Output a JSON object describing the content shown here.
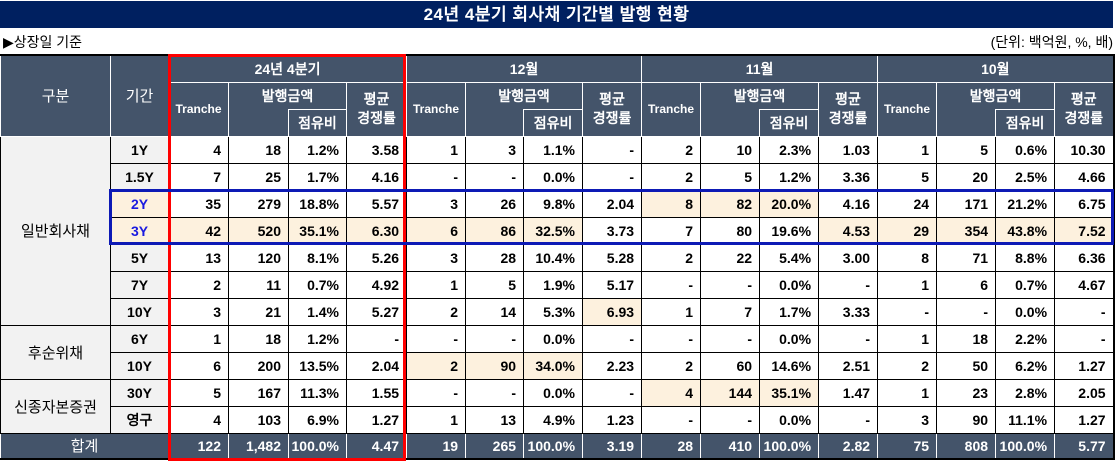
{
  "title": "24년 4분기 회사채 기간별 발행 현황",
  "subtitle_left": "▶상장일 기준",
  "unit_note": "(단위: 백억원, %, 배)",
  "colors": {
    "title_bg": "#002060",
    "header_bg": "#44546A",
    "label_bg": "#F2F2F2",
    "highlight_bg": "#FDF1DE",
    "red_box": "#FF0000",
    "blue_box": "#0D1AB5",
    "blue_text": "#1A1AE0"
  },
  "header": {
    "category": "구분",
    "period": "기간",
    "groups": [
      "24년 4분기",
      "12월",
      "11월",
      "10월"
    ],
    "tranche": "Tranche",
    "amount": "발행금액",
    "share": "점유비",
    "avg_line1": "평균",
    "avg_line2": "경쟁률"
  },
  "rows": [
    {
      "category": "일반회사채",
      "category_rowspan": 7,
      "period": "1Y",
      "groups": [
        [
          "4",
          "18",
          "1.2%",
          "3.58"
        ],
        [
          "1",
          "3",
          "1.1%",
          "-"
        ],
        [
          "2",
          "10",
          "2.3%",
          "1.03"
        ],
        [
          "1",
          "5",
          "0.6%",
          "10.30"
        ]
      ],
      "highlight": [
        [],
        [],
        [],
        []
      ]
    },
    {
      "period": "1.5Y",
      "groups": [
        [
          "7",
          "25",
          "1.7%",
          "4.16"
        ],
        [
          "-",
          "-",
          "0.0%",
          "-"
        ],
        [
          "2",
          "5",
          "1.2%",
          "3.36"
        ],
        [
          "5",
          "20",
          "2.5%",
          "4.66"
        ]
      ],
      "highlight": [
        [],
        [],
        [],
        []
      ]
    },
    {
      "period": "2Y",
      "period_highlight": true,
      "period_blue": true,
      "groups": [
        [
          "35",
          "279",
          "18.8%",
          "5.57"
        ],
        [
          "3",
          "26",
          "9.8%",
          "2.04"
        ],
        [
          "8",
          "82",
          "20.0%",
          "4.16"
        ],
        [
          "24",
          "171",
          "21.2%",
          "6.75"
        ]
      ],
      "highlight": [
        [],
        [],
        [
          0,
          1,
          2
        ],
        []
      ]
    },
    {
      "period": "3Y",
      "period_highlight": true,
      "period_blue": true,
      "groups": [
        [
          "42",
          "520",
          "35.1%",
          "6.30"
        ],
        [
          "6",
          "86",
          "32.5%",
          "3.73"
        ],
        [
          "7",
          "80",
          "19.6%",
          "4.53"
        ],
        [
          "29",
          "354",
          "43.8%",
          "7.52"
        ]
      ],
      "highlight": [
        [
          0,
          1,
          2,
          3
        ],
        [
          0,
          1,
          2
        ],
        [
          3
        ],
        [
          0,
          1,
          2,
          3
        ]
      ]
    },
    {
      "period": "5Y",
      "groups": [
        [
          "13",
          "120",
          "8.1%",
          "5.26"
        ],
        [
          "3",
          "28",
          "10.4%",
          "5.28"
        ],
        [
          "2",
          "22",
          "5.4%",
          "3.00"
        ],
        [
          "8",
          "71",
          "8.8%",
          "6.36"
        ]
      ],
      "highlight": [
        [],
        [],
        [],
        []
      ]
    },
    {
      "period": "7Y",
      "groups": [
        [
          "2",
          "11",
          "0.7%",
          "4.92"
        ],
        [
          "1",
          "5",
          "1.9%",
          "5.17"
        ],
        [
          "-",
          "-",
          "0.0%",
          "-"
        ],
        [
          "1",
          "6",
          "0.7%",
          "4.67"
        ]
      ],
      "highlight": [
        [],
        [],
        [],
        []
      ]
    },
    {
      "period": "10Y",
      "groups": [
        [
          "3",
          "21",
          "1.4%",
          "5.27"
        ],
        [
          "2",
          "14",
          "5.3%",
          "6.93"
        ],
        [
          "1",
          "7",
          "1.7%",
          "3.33"
        ],
        [
          "-",
          "-",
          "0.0%",
          "-"
        ]
      ],
      "highlight": [
        [],
        [
          3
        ],
        [],
        []
      ]
    },
    {
      "category": "후순위채",
      "category_rowspan": 2,
      "period": "6Y",
      "groups": [
        [
          "1",
          "18",
          "1.2%",
          "-"
        ],
        [
          "-",
          "-",
          "0.0%",
          "-"
        ],
        [
          "-",
          "-",
          "0.0%",
          "-"
        ],
        [
          "1",
          "18",
          "2.2%",
          "-"
        ]
      ],
      "highlight": [
        [],
        [],
        [],
        []
      ]
    },
    {
      "period": "10Y",
      "groups": [
        [
          "6",
          "200",
          "13.5%",
          "2.04"
        ],
        [
          "2",
          "90",
          "34.0%",
          "2.23"
        ],
        [
          "2",
          "60",
          "14.6%",
          "2.51"
        ],
        [
          "2",
          "50",
          "6.2%",
          "1.27"
        ]
      ],
      "highlight": [
        [],
        [
          0,
          1,
          2
        ],
        [],
        []
      ]
    },
    {
      "category": "신종자본증권",
      "category_rowspan": 2,
      "period": "30Y",
      "groups": [
        [
          "5",
          "167",
          "11.3%",
          "1.55"
        ],
        [
          "-",
          "-",
          "0.0%",
          "-"
        ],
        [
          "4",
          "144",
          "35.1%",
          "1.47"
        ],
        [
          "1",
          "23",
          "2.8%",
          "2.05"
        ]
      ],
      "highlight": [
        [],
        [],
        [
          0,
          1,
          2
        ],
        []
      ]
    },
    {
      "period": "영구",
      "groups": [
        [
          "4",
          "103",
          "6.9%",
          "1.27"
        ],
        [
          "1",
          "13",
          "4.9%",
          "1.23"
        ],
        [
          "-",
          "-",
          "0.0%",
          "-"
        ],
        [
          "3",
          "90",
          "11.1%",
          "1.27"
        ]
      ],
      "highlight": [
        [],
        [],
        [],
        []
      ]
    }
  ],
  "total": {
    "label": "합계",
    "groups": [
      [
        "122",
        "1,482",
        "100.0%",
        "4.47"
      ],
      [
        "19",
        "265",
        "100.0%",
        "3.19"
      ],
      [
        "28",
        "410",
        "100.0%",
        "2.82"
      ],
      [
        "75",
        "808",
        "100.0%",
        "5.77"
      ]
    ]
  }
}
